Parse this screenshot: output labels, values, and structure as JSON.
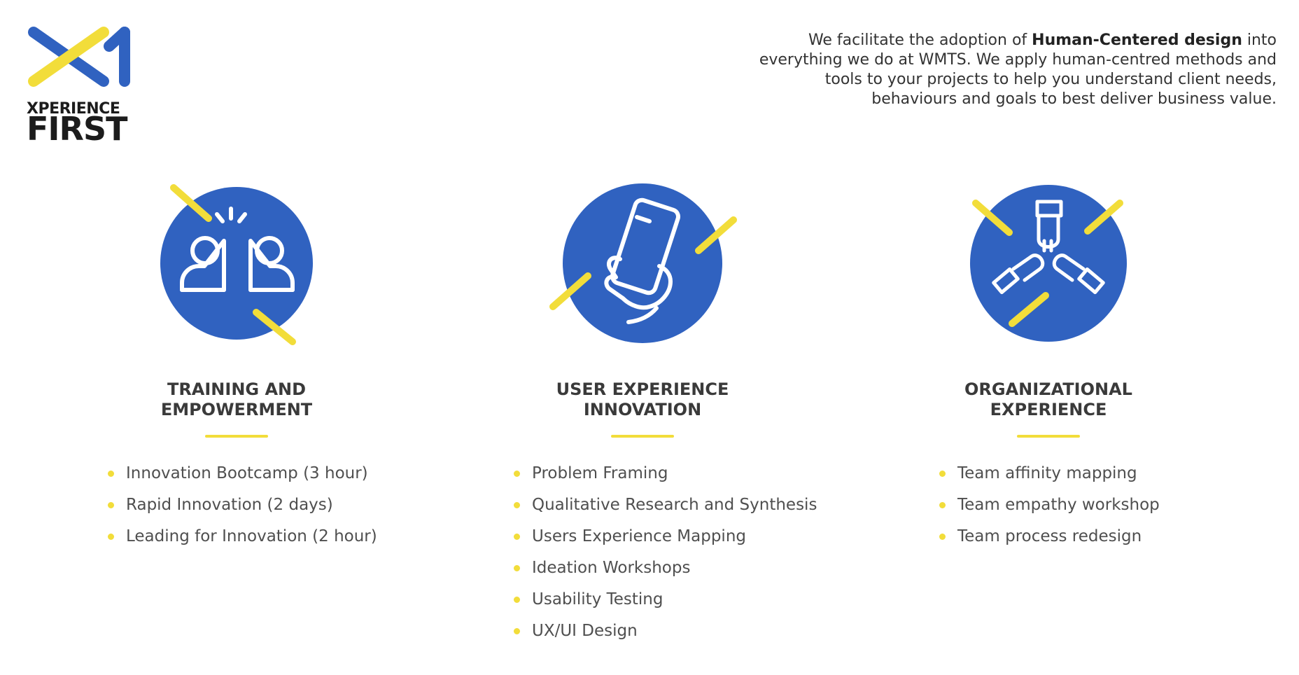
{
  "logo": {
    "line1": "XPERIENCE",
    "line2": "FIRST",
    "colors": {
      "blue": "#3062c0",
      "yellow": "#f2dd3a"
    }
  },
  "intro": {
    "before": "We facilitate the adoption of ",
    "bold": "Human-Centered design",
    "after": " into everything we do at WMTS. We apply human-centred methods and tools to your projects to help you understand client needs, behaviours and goals to best deliver business value."
  },
  "columns": [
    {
      "icon": "high-five-icon",
      "title_line1": "TRAINING AND",
      "title_line2": "EMPOWERMENT",
      "items": [
        "Innovation Bootcamp (3 hour)",
        "Rapid Innovation (2 days)",
        "Leading for Innovation (2 hour)"
      ]
    },
    {
      "icon": "smartphone-hand-icon",
      "title_line1": "USER EXPERIENCE",
      "title_line2": "INNOVATION",
      "items": [
        "Problem Framing",
        "Qualitative Research and Synthesis",
        "Users Experience Mapping",
        "Ideation Workshops",
        "Usability Testing",
        "UX/UI Design"
      ]
    },
    {
      "icon": "team-hands-icon",
      "title_line1": "ORGANIZATIONAL",
      "title_line2": "EXPERIENCE",
      "items": [
        "Team affinity mapping",
        "Team empathy workshop",
        "Team process redesign"
      ]
    }
  ],
  "colors": {
    "accent_blue": "#3062c0",
    "accent_yellow": "#f2dd3a"
  }
}
